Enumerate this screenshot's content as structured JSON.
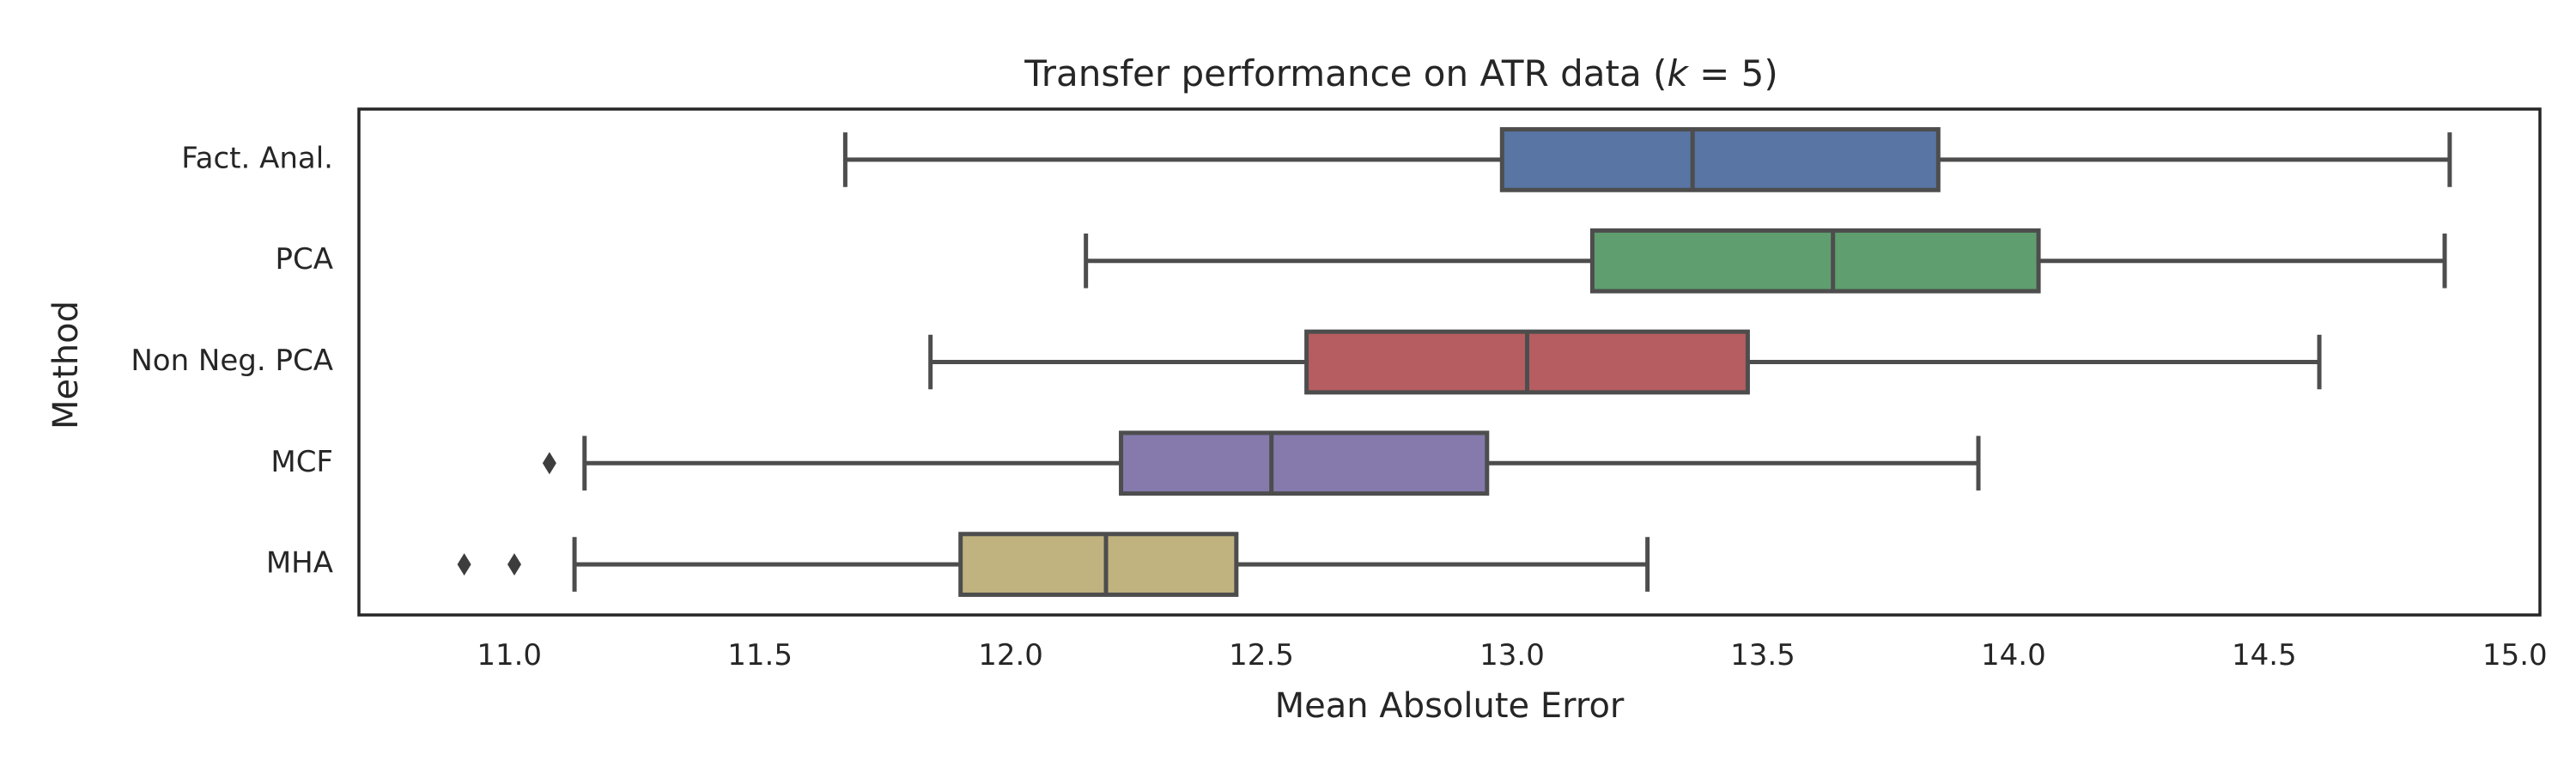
{
  "chart_data": {
    "type": "boxplot",
    "orientation": "horizontal",
    "title": "Transfer performance on ATR data (",
    "title_math_var": "k",
    "title_math_rest": " = 5)",
    "xlabel": "Mean Absolute Error",
    "ylabel": "Method",
    "xlim": [
      10.7,
      15.05
    ],
    "xticks": [
      "11.0",
      "11.5",
      "12.0",
      "12.5",
      "13.0",
      "13.5",
      "14.0",
      "14.5",
      "15.0"
    ],
    "grid": false,
    "categories": [
      "Fact. Anal.",
      "PCA",
      "Non Neg. PCA",
      "MCF",
      "MHA"
    ],
    "series": [
      {
        "category": "Fact. Anal.",
        "color": "#5875a4",
        "whisker_low": 11.67,
        "q1": 12.98,
        "median": 13.36,
        "q3": 13.85,
        "whisker_high": 14.87,
        "outliers": []
      },
      {
        "category": "PCA",
        "color": "#5f9e6e",
        "whisker_low": 12.15,
        "q1": 13.16,
        "median": 13.64,
        "q3": 14.05,
        "whisker_high": 14.86,
        "outliers": []
      },
      {
        "category": "Non Neg. PCA",
        "color": "#b55d60",
        "whisker_low": 11.84,
        "q1": 12.59,
        "median": 13.03,
        "q3": 13.47,
        "whisker_high": 14.61,
        "outliers": []
      },
      {
        "category": "MCF",
        "color": "#857aab",
        "whisker_low": 11.15,
        "q1": 12.22,
        "median": 12.52,
        "q3": 12.95,
        "whisker_high": 13.93,
        "outliers": [
          11.08
        ]
      },
      {
        "category": "MHA",
        "color": "#c1b37f",
        "whisker_low": 11.13,
        "q1": 11.9,
        "median": 12.19,
        "q3": 12.45,
        "whisker_high": 13.27,
        "outliers": [
          10.91,
          11.01
        ]
      }
    ]
  }
}
